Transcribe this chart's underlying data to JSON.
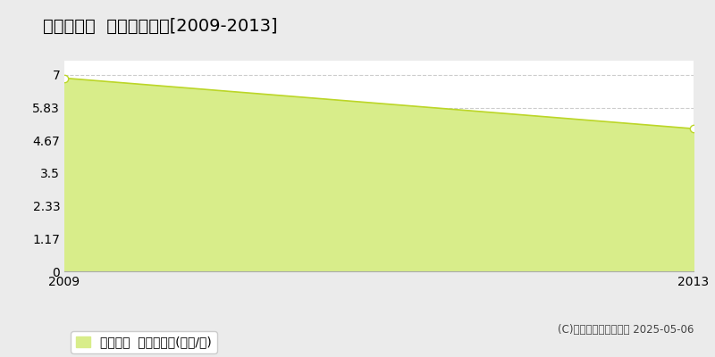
{
  "title": "加東市野村  住宅価格推移[2009-2013]",
  "x_values": [
    2009,
    2013
  ],
  "y_values": [
    6.88,
    5.08
  ],
  "y_ticks": [
    0,
    1.17,
    2.33,
    3.5,
    4.67,
    5.83,
    7
  ],
  "x_ticks": [
    2009,
    2013
  ],
  "ylim": [
    0,
    7.5
  ],
  "xlim": [
    2009,
    2013
  ],
  "fill_color": "#d8ed8a",
  "line_color": "#bcd628",
  "grid_color": "#cccccc",
  "outer_bg_color": "#ebebeb",
  "inner_bg_color": "#ffffff",
  "legend_label": "住宅価格  平均坪単価(万円/坪)",
  "copyright_text": "(C)土地価格ドットコム 2025-05-06",
  "title_fontsize": 14,
  "tick_fontsize": 10,
  "legend_fontsize": 10
}
